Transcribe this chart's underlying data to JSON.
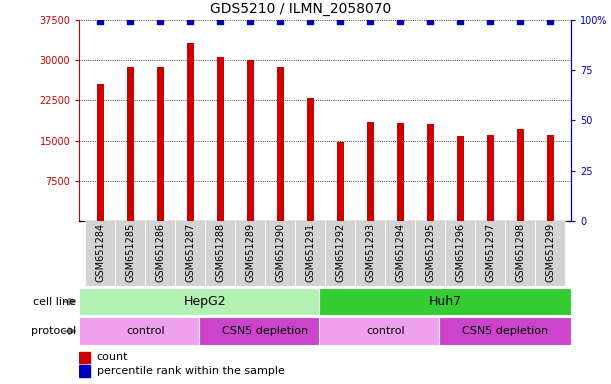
{
  "title": "GDS5210 / ILMN_2058070",
  "samples": [
    "GSM651284",
    "GSM651285",
    "GSM651286",
    "GSM651287",
    "GSM651288",
    "GSM651289",
    "GSM651290",
    "GSM651291",
    "GSM651292",
    "GSM651293",
    "GSM651294",
    "GSM651295",
    "GSM651296",
    "GSM651297",
    "GSM651298",
    "GSM651299"
  ],
  "counts": [
    25500,
    28700,
    28700,
    33200,
    30600,
    30000,
    28700,
    23000,
    14800,
    18500,
    18200,
    18100,
    15900,
    16100,
    17100,
    16000
  ],
  "percentile_ranks_y": [
    37200,
    37200,
    37200,
    37200,
    37200,
    37200,
    37200,
    37200,
    37200,
    37200,
    37200,
    37200,
    37200,
    37200,
    37200,
    37200
  ],
  "bar_color": "#cc0000",
  "dot_color": "#0000bb",
  "ylim_left": [
    0,
    37500
  ],
  "ylim_right": [
    0,
    100
  ],
  "yticks_left": [
    7500,
    15000,
    22500,
    30000,
    37500
  ],
  "yticks_right": [
    0,
    25,
    50,
    75,
    100
  ],
  "cell_line_groups": [
    {
      "label": "HepG2",
      "start": 0,
      "end": 8,
      "color": "#b3f0b3"
    },
    {
      "label": "Huh7",
      "start": 8,
      "end": 16,
      "color": "#33cc33"
    }
  ],
  "protocol_groups": [
    {
      "label": "control",
      "start": 0,
      "end": 4,
      "color": "#f0a0f0"
    },
    {
      "label": "CSN5 depletion",
      "start": 4,
      "end": 8,
      "color": "#cc44cc"
    },
    {
      "label": "control",
      "start": 8,
      "end": 12,
      "color": "#f0a0f0"
    },
    {
      "label": "CSN5 depletion",
      "start": 12,
      "end": 16,
      "color": "#cc44cc"
    }
  ],
  "legend_count_label": "count",
  "legend_pct_label": "percentile rank within the sample",
  "cell_line_row_label": "cell line",
  "protocol_row_label": "protocol",
  "title_fontsize": 10,
  "tick_fontsize": 7,
  "label_fontsize": 8,
  "annotation_fontsize": 9,
  "xtick_fontsize": 7,
  "bar_width": 0.25
}
